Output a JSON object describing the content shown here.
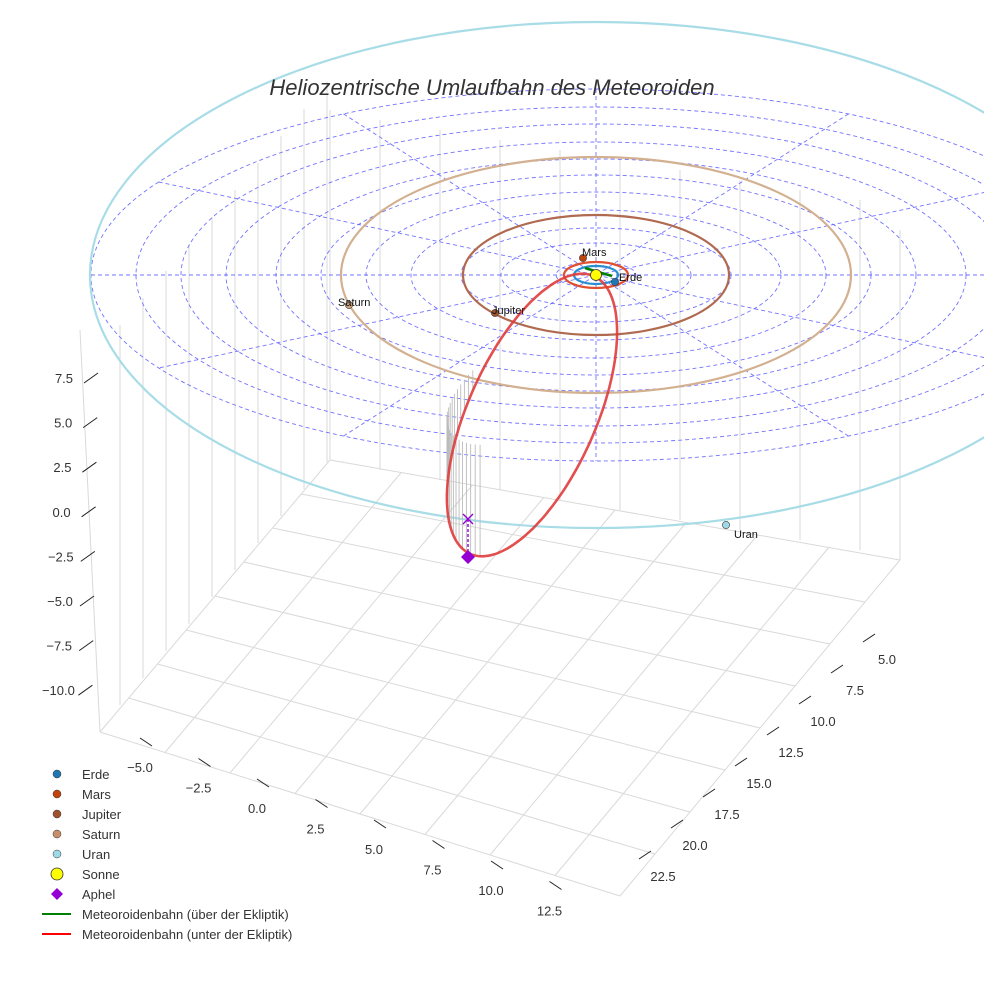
{
  "chart_data": {
    "type": "line3d",
    "title": "Heliozentrische Umlaufbahn des Meteoroiden",
    "xlabel": "",
    "ylabel": "",
    "zlabel": "",
    "x_axis_ticks": [
      "−5.0",
      "−2.5",
      "0.0",
      "2.5",
      "5.0",
      "7.5",
      "10.0",
      "12.5"
    ],
    "y_axis_ticks": [
      "5.0",
      "7.5",
      "10.0",
      "12.5",
      "15.0",
      "17.5",
      "20.0",
      "22.5"
    ],
    "z_axis_ticks": [
      "7.5",
      "5.0",
      "2.5",
      "0.0",
      "−2.5",
      "−5.0",
      "−7.5",
      "−10.0"
    ],
    "bodies": [
      {
        "name": "Erde",
        "label": "Erde",
        "orbit_radius_au": 1.0,
        "color": "#1f77b4"
      },
      {
        "name": "Mars",
        "label": "Mars",
        "orbit_radius_au": 1.52,
        "color": "#c1440e"
      },
      {
        "name": "Jupiter",
        "label": "Jupiter",
        "orbit_radius_au": 5.2,
        "color": "#a0522d"
      },
      {
        "name": "Saturn",
        "label": "Saturn",
        "orbit_radius_au": 9.54,
        "color": "#c8a27a"
      },
      {
        "name": "Uran",
        "label": "Uran",
        "orbit_radius_au": 19.2,
        "color": "#9fd8e6"
      }
    ],
    "sun": {
      "name": "Sonne",
      "color": "#ffff00"
    },
    "aphel": {
      "name": "Aphel",
      "color": "#9400d3"
    },
    "meteoroid_orbit": {
      "above_ecliptic": {
        "name": "Meteoroidenbahn (über der Ekliptik)",
        "color": "#008000"
      },
      "below_ecliptic": {
        "name": "Meteoroidenbahn (unter der Ekliptik)",
        "color": "#ff0000"
      }
    },
    "grid": true,
    "legend_position": "bottom-left"
  },
  "legend": [
    {
      "label": "Erde",
      "kind": "dot",
      "color": "#1f77b4"
    },
    {
      "label": "Mars",
      "kind": "dot",
      "color": "#c1440e"
    },
    {
      "label": "Jupiter",
      "kind": "dot",
      "color": "#a0522d"
    },
    {
      "label": "Saturn",
      "kind": "dot",
      "color": "#c8906a"
    },
    {
      "label": "Uran",
      "kind": "dot",
      "color": "#9fd8e6"
    },
    {
      "label": "Sonne",
      "kind": "bigdot",
      "color": "#ffff00"
    },
    {
      "label": "Aphel",
      "kind": "diamond",
      "color": "#9400d3"
    },
    {
      "label": "Meteoroidenbahn (über der Ekliptik)",
      "kind": "line",
      "color": "#008000"
    },
    {
      "label": "Meteoroidenbahn (unter der Ekliptik)",
      "kind": "line",
      "color": "#ff0000"
    }
  ]
}
